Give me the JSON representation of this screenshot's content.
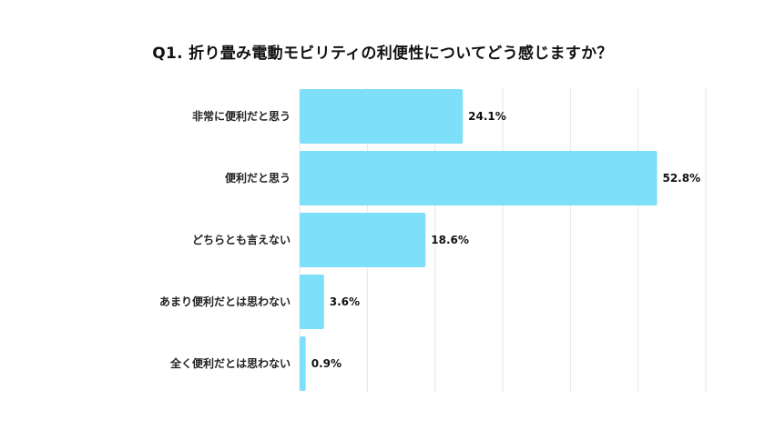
{
  "chart_data": {
    "type": "bar",
    "orientation": "horizontal",
    "title": "Q1. 折り畳み電動モビリティの利便性についてどう感じますか？",
    "categories": [
      "非常に便利だと思う",
      "便利だと思う",
      "どちらとも言えない",
      "あまり便利だとは思わない",
      "全く便利だとは思わない"
    ],
    "values": [
      24.1,
      52.8,
      18.6,
      3.6,
      0.9
    ],
    "value_labels": [
      "24.1%",
      "52.8%",
      "18.6%",
      "3.6%",
      "0.9%"
    ],
    "xlim": [
      0,
      60
    ],
    "grid": true,
    "bar_color": "#7ddff8",
    "grid_color": "#e6e6e6"
  }
}
